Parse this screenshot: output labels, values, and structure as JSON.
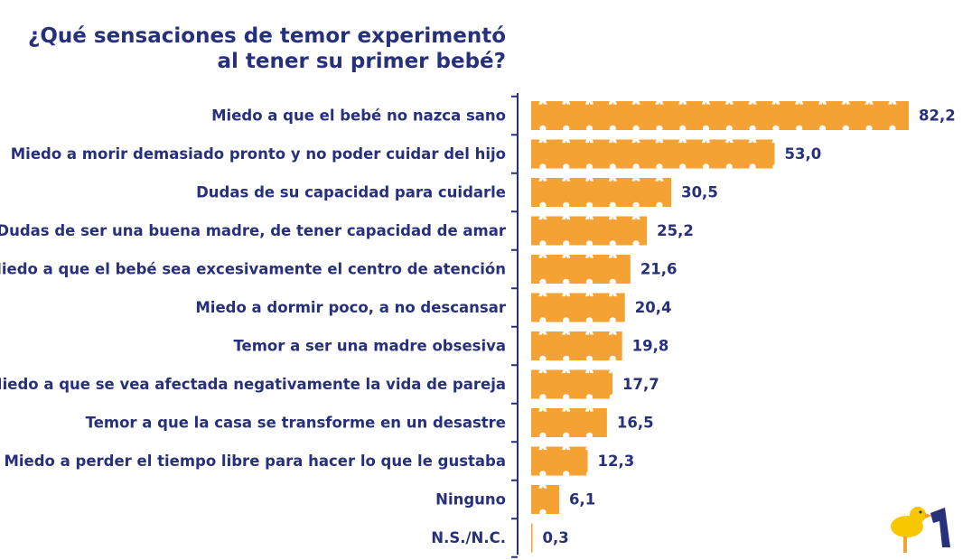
{
  "chart_data": {
    "type": "bar",
    "orientation": "horizontal",
    "title": [
      "¿Qué sensaciones de temor experimentó",
      "al tener su primer bebé?"
    ],
    "categories": [
      "Miedo a que el bebé no nazca sano",
      "Miedo a morir demasiado pronto y no poder cuidar del hijo",
      "Dudas de su capacidad para cuidarle",
      "Dudas de ser una buena madre, de tener capacidad de amar",
      "Miedo a que el bebé sea excesivamente el centro de atención",
      "Miedo a dormir poco, a no descansar",
      "Temor a ser una madre obsesiva",
      "Miedo a que se vea afectada negativamente la vida de pareja",
      "Temor a que la casa se transforme en un desastre",
      "Miedo a perder el tiempo libre para hacer lo que le gustaba",
      "Ninguno",
      "N.S./N.C."
    ],
    "values": [
      82.2,
      53.0,
      30.5,
      25.2,
      21.6,
      20.4,
      19.8,
      17.7,
      16.5,
      12.3,
      6.1,
      0.3
    ],
    "value_labels": [
      "82,2",
      "53,0",
      "30,5",
      "25,2",
      "21,6",
      "20,4",
      "19,8",
      "17,7",
      "16,5",
      "12,3",
      "6,1",
      "0,3"
    ],
    "xlim": [
      0,
      82.2
    ],
    "xlabel": "",
    "ylabel": "",
    "grid": false
  },
  "colors": {
    "bar": "#f4a234",
    "figure": "#ffffff",
    "text": "#27307a",
    "axis": "#27307a",
    "logo_duck": "#f7c700",
    "logo_mark": "#27307a"
  },
  "logo": {
    "icon": "duck-icon"
  }
}
